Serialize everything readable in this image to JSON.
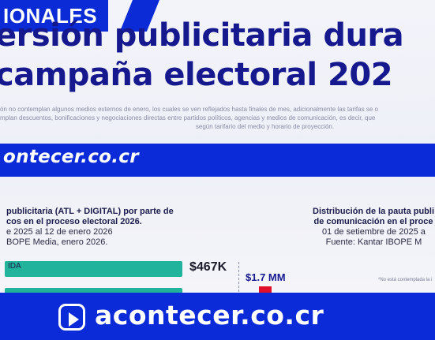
{
  "section_tag": "IONALES",
  "headline": {
    "line1": "ersión publicitaria dura",
    "line2": "campaña electoral 202"
  },
  "disclaimer": {
    "line1": "ón no contemplan algunos medios externos de enero, los cuales se ven reflejados hasta finales de mes, adicionalmente las tarifas se o",
    "line2": "mplan descuentos, bonificaciones y negociaciones directas entre partidos políticos, agencias y medios de comunicación, es decir, que",
    "line3": "según tarifario del medio y horario de proyección."
  },
  "brand_band": {
    "text": "ontecer.co.cr"
  },
  "left_panel": {
    "title_line1": "publicitaria (ATL + DIGITAL) por parte de",
    "title_line2": "cos en el proceso electoral 2026.",
    "sub_line1": "e 2025 al 12 de enero 2026",
    "sub_line2": "BOPE Media, enero 2026."
  },
  "right_panel": {
    "title_line1": "Distribución de la pauta publi",
    "title_line2": "de comunicación en el proce",
    "sub_line1": "01 de setiembre de 2025 a",
    "sub_line2": "Fuente: Kantar IBOPE M"
  },
  "bars": {
    "label": "IDA",
    "value_1": "$467K",
    "total": "$1.7 MM",
    "footnote": "*No está contemplada la i"
  },
  "lower_third": {
    "text": "acontecer.co.cr",
    "logo_icon": "play-logo-icon"
  },
  "colors": {
    "brand_blue": "#0b2bd8",
    "headline_navy": "#16198e",
    "bar_teal": "#21b39b",
    "accent_red": "#e0102a"
  }
}
